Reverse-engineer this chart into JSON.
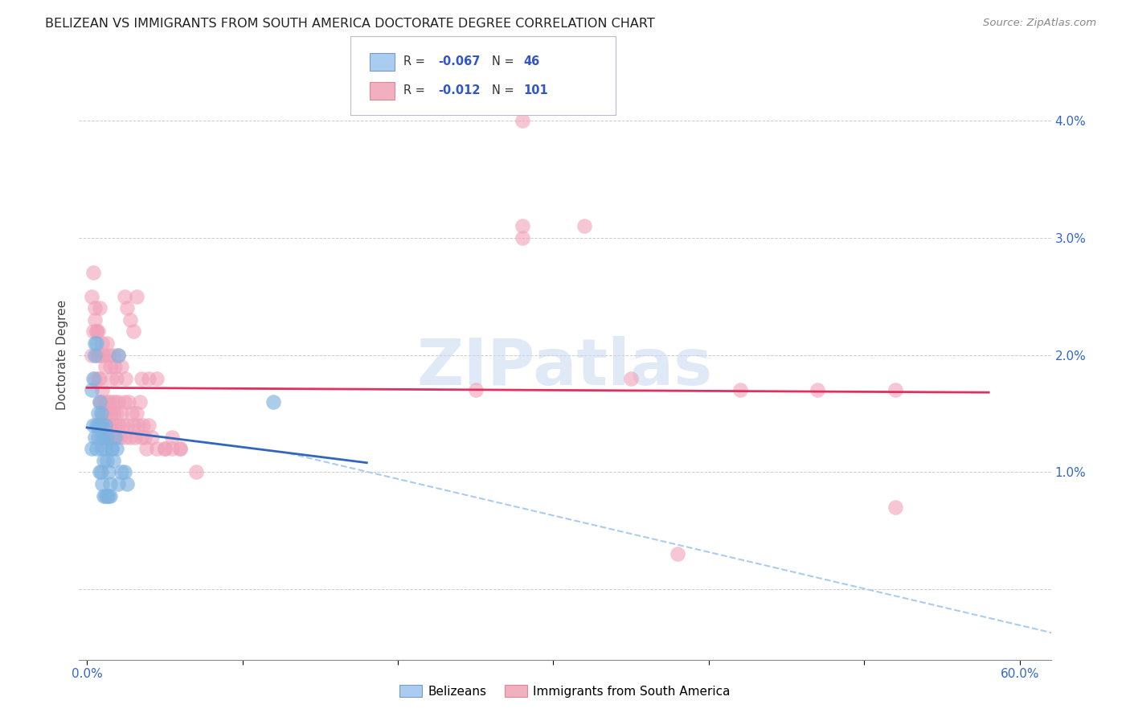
{
  "title": "BELIZEAN VS IMMIGRANTS FROM SOUTH AMERICA DOCTORATE DEGREE CORRELATION CHART",
  "source": "Source: ZipAtlas.com",
  "ylabel": "Doctorate Degree",
  "belizean_color": "#7fb3e0",
  "sa_color": "#f0a0b8",
  "belizean_R": "-0.067",
  "belizean_N": "46",
  "sa_R": "-0.012",
  "sa_N": "101",
  "watermark_text": "ZIPatlas",
  "xlim": [
    -0.005,
    0.62
  ],
  "ylim": [
    -0.006,
    0.046
  ],
  "yticks": [
    0.0,
    0.01,
    0.02,
    0.03,
    0.04
  ],
  "ytick_labels": [
    "",
    "1.0%",
    "2.0%",
    "3.0%",
    "4.0%"
  ],
  "xticks": [
    0.0,
    0.1,
    0.2,
    0.3,
    0.4,
    0.5,
    0.6
  ],
  "xtick_labels": [
    "0.0%",
    "",
    "",
    "",
    "",
    "",
    "60.0%"
  ],
  "blue_line_x0": 0.0,
  "blue_line_x1": 0.18,
  "blue_line_y0": 0.0138,
  "blue_line_y1": 0.0108,
  "pink_line_x0": 0.0,
  "pink_line_x1": 0.58,
  "pink_line_y0": 0.0172,
  "pink_line_y1": 0.0168,
  "dash_line_x0": 0.13,
  "dash_line_x1": 0.63,
  "dash_line_y0": 0.0116,
  "dash_line_y1": -0.004,
  "belizean_x": [
    0.003,
    0.004,
    0.005,
    0.005,
    0.006,
    0.006,
    0.007,
    0.007,
    0.008,
    0.008,
    0.009,
    0.009,
    0.01,
    0.01,
    0.011,
    0.011,
    0.012,
    0.012,
    0.013,
    0.013,
    0.014,
    0.015,
    0.016,
    0.017,
    0.018,
    0.019,
    0.02,
    0.022,
    0.024,
    0.026,
    0.003,
    0.004,
    0.005,
    0.006,
    0.007,
    0.008,
    0.009,
    0.01,
    0.011,
    0.012,
    0.013,
    0.014,
    0.015,
    0.016,
    0.12,
    0.02
  ],
  "belizean_y": [
    0.012,
    0.014,
    0.013,
    0.021,
    0.012,
    0.014,
    0.013,
    0.015,
    0.014,
    0.016,
    0.013,
    0.015,
    0.012,
    0.014,
    0.011,
    0.013,
    0.012,
    0.014,
    0.011,
    0.013,
    0.01,
    0.009,
    0.012,
    0.011,
    0.013,
    0.012,
    0.009,
    0.01,
    0.01,
    0.009,
    0.017,
    0.018,
    0.02,
    0.021,
    0.014,
    0.01,
    0.01,
    0.009,
    0.008,
    0.008,
    0.008,
    0.008,
    0.008,
    0.012,
    0.016,
    0.02
  ],
  "sa_x": [
    0.003,
    0.004,
    0.005,
    0.005,
    0.006,
    0.006,
    0.007,
    0.007,
    0.008,
    0.008,
    0.009,
    0.009,
    0.01,
    0.01,
    0.011,
    0.011,
    0.012,
    0.012,
    0.013,
    0.013,
    0.014,
    0.014,
    0.015,
    0.015,
    0.016,
    0.016,
    0.017,
    0.017,
    0.018,
    0.018,
    0.019,
    0.019,
    0.02,
    0.02,
    0.021,
    0.022,
    0.023,
    0.024,
    0.025,
    0.025,
    0.026,
    0.027,
    0.028,
    0.029,
    0.03,
    0.031,
    0.032,
    0.033,
    0.034,
    0.035,
    0.036,
    0.037,
    0.038,
    0.04,
    0.042,
    0.045,
    0.05,
    0.055,
    0.06,
    0.07,
    0.003,
    0.004,
    0.005,
    0.006,
    0.007,
    0.008,
    0.009,
    0.01,
    0.011,
    0.012,
    0.013,
    0.014,
    0.015,
    0.016,
    0.017,
    0.018,
    0.019,
    0.02,
    0.022,
    0.024,
    0.026,
    0.028,
    0.03,
    0.032,
    0.035,
    0.04,
    0.045,
    0.05,
    0.055,
    0.06,
    0.25,
    0.35,
    0.42,
    0.52,
    0.28,
    0.32,
    0.28,
    0.38,
    0.28,
    0.47,
    0.52
  ],
  "sa_y": [
    0.02,
    0.022,
    0.018,
    0.024,
    0.02,
    0.022,
    0.018,
    0.02,
    0.016,
    0.018,
    0.014,
    0.016,
    0.015,
    0.017,
    0.013,
    0.015,
    0.014,
    0.016,
    0.013,
    0.015,
    0.014,
    0.016,
    0.013,
    0.015,
    0.014,
    0.016,
    0.013,
    0.015,
    0.014,
    0.016,
    0.013,
    0.015,
    0.014,
    0.016,
    0.013,
    0.015,
    0.014,
    0.016,
    0.013,
    0.018,
    0.014,
    0.016,
    0.013,
    0.015,
    0.014,
    0.013,
    0.015,
    0.014,
    0.016,
    0.013,
    0.014,
    0.013,
    0.012,
    0.014,
    0.013,
    0.012,
    0.012,
    0.013,
    0.012,
    0.01,
    0.025,
    0.027,
    0.023,
    0.022,
    0.022,
    0.024,
    0.02,
    0.021,
    0.02,
    0.019,
    0.021,
    0.02,
    0.019,
    0.018,
    0.02,
    0.019,
    0.018,
    0.02,
    0.019,
    0.025,
    0.024,
    0.023,
    0.022,
    0.025,
    0.018,
    0.018,
    0.018,
    0.012,
    0.012,
    0.012,
    0.017,
    0.018,
    0.017,
    0.017,
    0.031,
    0.031,
    0.03,
    0.003,
    0.04,
    0.017,
    0.007
  ]
}
